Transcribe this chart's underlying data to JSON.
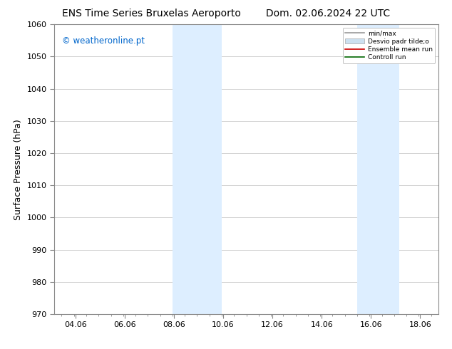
{
  "title_left": "ENS Time Series Bruxelas Aeroporto",
  "title_right": "Dom. 02.06.2024 22 UTC",
  "ylabel": "Surface Pressure (hPa)",
  "watermark": "© weatheronline.pt",
  "watermark_color": "#0066cc",
  "xlim_left": 3.2,
  "xlim_right": 18.8,
  "ylim_bottom": 970,
  "ylim_top": 1060,
  "yticks": [
    970,
    980,
    990,
    1000,
    1010,
    1020,
    1030,
    1040,
    1050,
    1060
  ],
  "xticks": [
    4.06,
    6.06,
    8.06,
    10.06,
    12.06,
    14.06,
    16.06,
    18.06
  ],
  "xticklabels": [
    "04.06",
    "06.06",
    "08.06",
    "10.06",
    "12.06",
    "14.06",
    "16.06",
    "18.06"
  ],
  "shaded_bands": [
    {
      "xmin": 8.0,
      "xmax": 10.0,
      "color": "#ddeeff"
    },
    {
      "xmin": 15.5,
      "xmax": 17.2,
      "color": "#ddeeff"
    }
  ],
  "legend_entries": [
    {
      "label": "min/max",
      "color": "#999999",
      "style": "line"
    },
    {
      "label": "Desvio padr tilde;o",
      "color": "#cce0f0",
      "style": "box"
    },
    {
      "label": "Ensemble mean run",
      "color": "#cc0000",
      "style": "line"
    },
    {
      "label": "Controll run",
      "color": "#006600",
      "style": "line"
    }
  ],
  "bg_color": "#ffffff",
  "grid_color": "#cccccc",
  "tick_fontsize": 8,
  "label_fontsize": 9,
  "title_fontsize": 10
}
